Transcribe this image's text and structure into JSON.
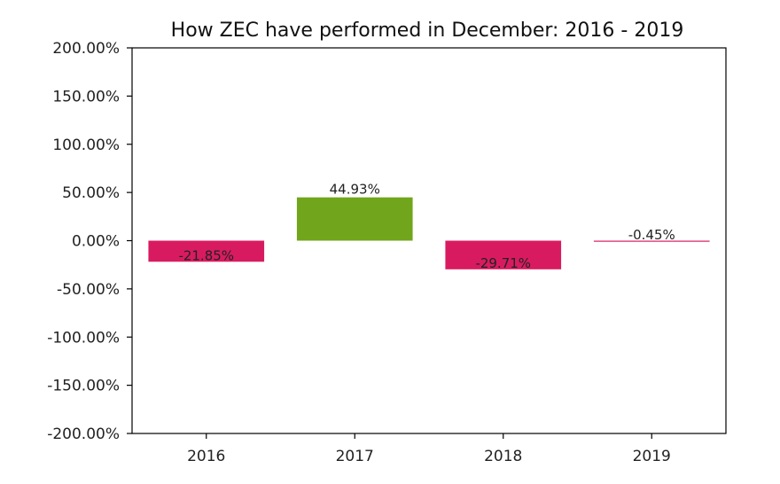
{
  "chart_data": {
    "type": "bar",
    "title": "How ZEC have performed in December: 2016 - 2019",
    "xlabel": "",
    "ylabel": "",
    "categories": [
      "2016",
      "2017",
      "2018",
      "2019"
    ],
    "values": [
      -21.85,
      44.93,
      -29.71,
      -0.45
    ],
    "data_labels": [
      "-21.85%",
      "44.93%",
      "-29.71%",
      "-0.45%"
    ],
    "ylim": [
      -200,
      200
    ],
    "yticks": [
      200,
      150,
      100,
      50,
      0,
      -50,
      -100,
      -150,
      -200
    ],
    "ytick_labels": [
      "200.00%",
      "150.00%",
      "100.00%",
      "50.00%",
      "0.00%",
      "-50.00%",
      "-100.00%",
      "-150.00%",
      "-200.00%"
    ],
    "grid": false,
    "colors": {
      "positive": "#71a61c",
      "negative": "#d81b60"
    }
  }
}
